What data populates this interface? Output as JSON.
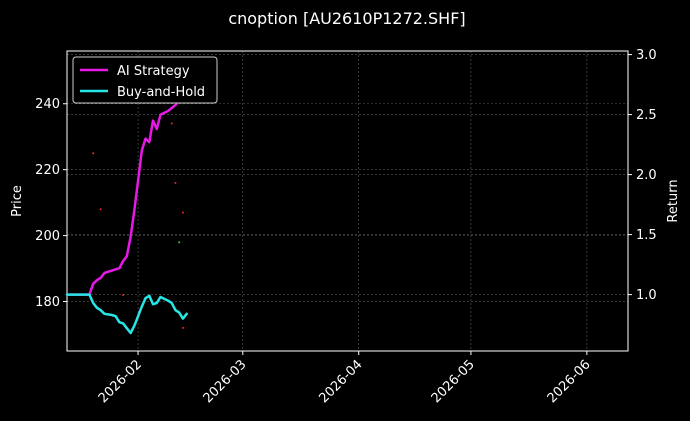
{
  "chart_data": {
    "type": "line",
    "title": "cnoption [AU2610P1272.SHF]",
    "xlabel": "",
    "ylabel_left": "Price",
    "ylabel_right": "Return",
    "x_ticks": [
      "2026-02",
      "2026-03",
      "2026-04",
      "2026-05",
      "2026-06"
    ],
    "xlim": [
      "2026-01-13",
      "2026-06-12"
    ],
    "left_axis": {
      "ylim": [
        165,
        256
      ],
      "ticks": [
        180,
        200,
        220,
        240
      ]
    },
    "right_axis": {
      "ylim": [
        0.53,
        3.03
      ],
      "ticks": [
        "1.0",
        "1.5",
        "2.0",
        "2.5",
        "3.0"
      ]
    },
    "grid": true,
    "legend_position": "top-left",
    "series": [
      {
        "name": "AI Strategy",
        "axis": "right",
        "color": "#e619e6",
        "points": [
          [
            "2026-01-13",
            1.0
          ],
          [
            "2026-01-15",
            1.0
          ],
          [
            "2026-01-17",
            1.0
          ],
          [
            "2026-01-19",
            1.0
          ],
          [
            "2026-01-20",
            1.09
          ],
          [
            "2026-01-21",
            1.12
          ],
          [
            "2026-01-22",
            1.14
          ],
          [
            "2026-01-23",
            1.18
          ],
          [
            "2026-01-25",
            1.2
          ],
          [
            "2026-01-27",
            1.22
          ],
          [
            "2026-01-28",
            1.28
          ],
          [
            "2026-01-29",
            1.32
          ],
          [
            "2026-01-30",
            1.48
          ],
          [
            "2026-01-31",
            1.7
          ],
          [
            "2026-02-01",
            1.95
          ],
          [
            "2026-02-02",
            2.2
          ],
          [
            "2026-02-03",
            2.3
          ],
          [
            "2026-02-04",
            2.27
          ],
          [
            "2026-02-05",
            2.45
          ],
          [
            "2026-02-06",
            2.38
          ],
          [
            "2026-02-07",
            2.5
          ],
          [
            "2026-02-09",
            2.53
          ],
          [
            "2026-02-11",
            2.58
          ],
          [
            "2026-02-12",
            2.62
          ],
          [
            "2026-02-13",
            2.65
          ],
          [
            "2026-02-14",
            2.69
          ],
          [
            "2026-02-15",
            2.73
          ]
        ]
      },
      {
        "name": "Buy-and-Hold",
        "axis": "right",
        "color": "#26e6e6",
        "points": [
          [
            "2026-01-13",
            1.0
          ],
          [
            "2026-01-15",
            1.0
          ],
          [
            "2026-01-17",
            1.0
          ],
          [
            "2026-01-19",
            1.0
          ],
          [
            "2026-01-20",
            0.93
          ],
          [
            "2026-01-21",
            0.89
          ],
          [
            "2026-01-22",
            0.87
          ],
          [
            "2026-01-23",
            0.84
          ],
          [
            "2026-01-25",
            0.83
          ],
          [
            "2026-01-26",
            0.82
          ],
          [
            "2026-01-27",
            0.77
          ],
          [
            "2026-01-28",
            0.76
          ],
          [
            "2026-01-29",
            0.72
          ],
          [
            "2026-01-30",
            0.68
          ],
          [
            "2026-01-31",
            0.74
          ],
          [
            "2026-02-01",
            0.82
          ],
          [
            "2026-02-02",
            0.9
          ],
          [
            "2026-02-03",
            0.97
          ],
          [
            "2026-02-04",
            0.99
          ],
          [
            "2026-02-05",
            0.92
          ],
          [
            "2026-02-06",
            0.93
          ],
          [
            "2026-02-07",
            0.98
          ],
          [
            "2026-02-09",
            0.95
          ],
          [
            "2026-02-10",
            0.93
          ],
          [
            "2026-02-11",
            0.87
          ],
          [
            "2026-02-12",
            0.85
          ],
          [
            "2026-02-13",
            0.8
          ],
          [
            "2026-02-14",
            0.84
          ]
        ]
      }
    ],
    "price_markers": {
      "axis": "left",
      "points": [
        {
          "x": "2026-01-20",
          "y": 225,
          "color": "#ff2020"
        },
        {
          "x": "2026-01-22",
          "y": 208,
          "color": "#ff2020"
        },
        {
          "x": "2026-01-28",
          "y": 182,
          "color": "#ff2020"
        },
        {
          "x": "2026-02-10",
          "y": 234,
          "color": "#ff2020"
        },
        {
          "x": "2026-02-11",
          "y": 216,
          "color": "#ff2020"
        },
        {
          "x": "2026-02-12",
          "y": 198,
          "color": "#30d040"
        },
        {
          "x": "2026-02-13",
          "y": 207,
          "color": "#ff2020"
        },
        {
          "x": "2026-02-13",
          "y": 172,
          "color": "#ff2020"
        }
      ]
    }
  }
}
